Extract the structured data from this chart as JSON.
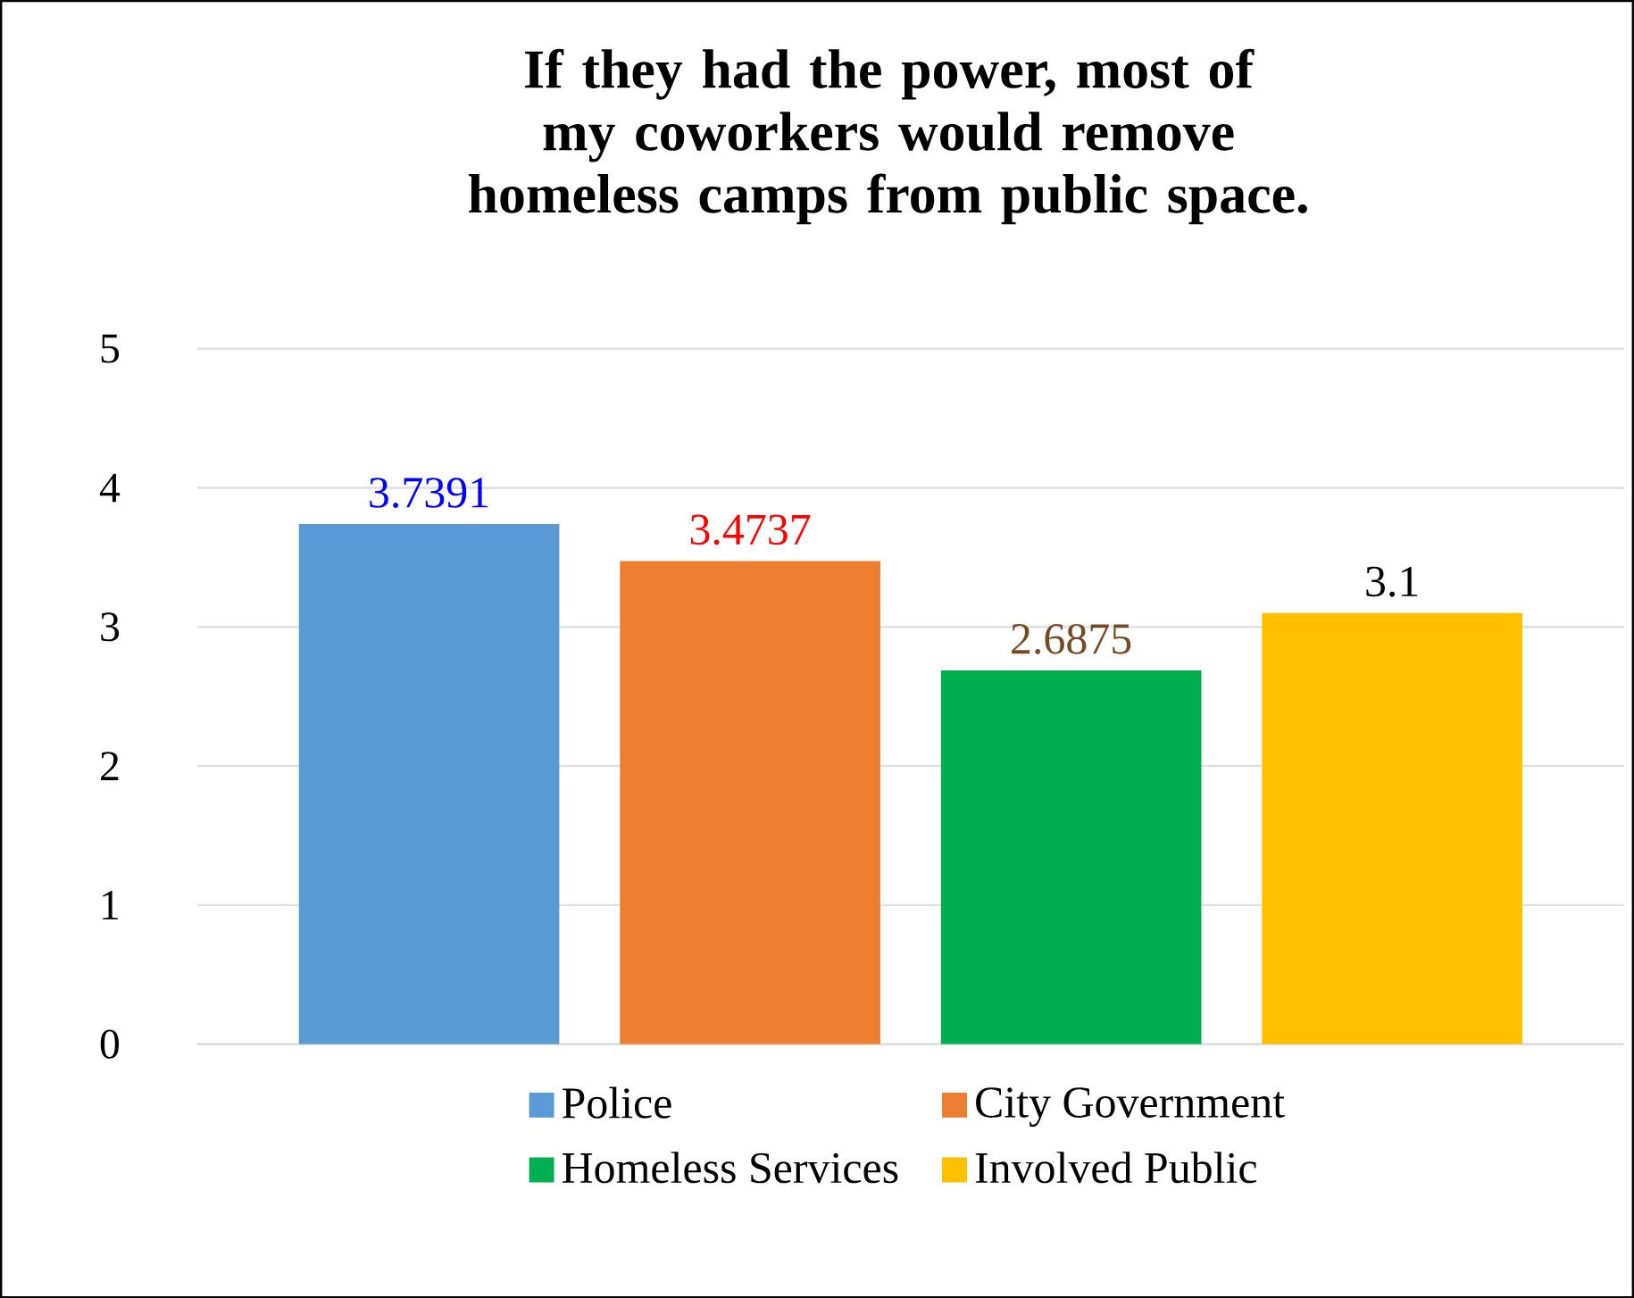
{
  "chart_data": {
    "type": "bar",
    "title": "If they had the power, most of my coworkers would remove homeless camps from public space.",
    "categories": [
      null
    ],
    "series": [
      {
        "name": "Police",
        "color": "#5b9bd5",
        "values": [
          3.7391
        ]
      },
      {
        "name": "City Government",
        "color": "#ed7d31",
        "values": [
          3.4737
        ]
      },
      {
        "name": "Homeless Services",
        "color": "#00b050",
        "values": [
          2.6875
        ]
      },
      {
        "name": "Involved Public",
        "color": "#ffc000",
        "values": [
          3.1
        ]
      }
    ],
    "ylim": [
      0,
      5
    ],
    "yticks": [
      0,
      1,
      2,
      3,
      4,
      5
    ],
    "grid": "y",
    "legend": "bottom",
    "data_labels": true
  }
}
